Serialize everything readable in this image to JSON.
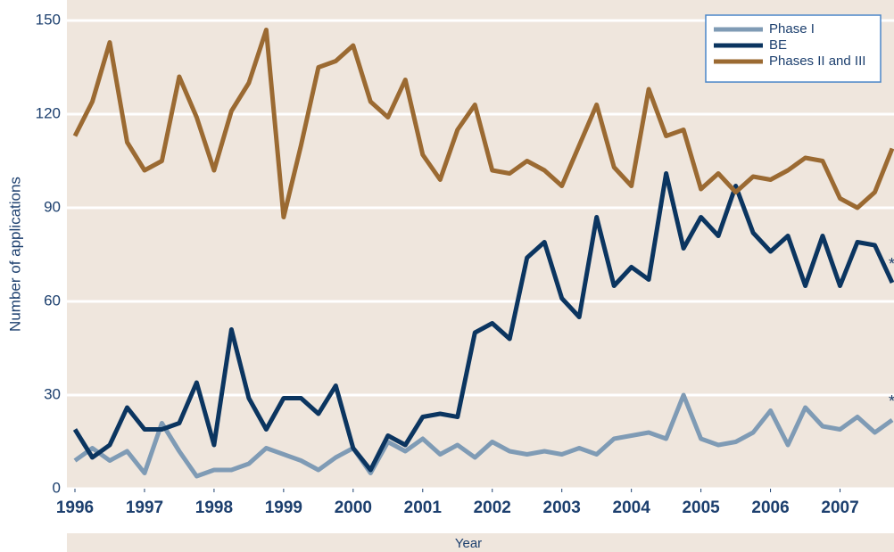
{
  "chart_data": {
    "type": "line",
    "xlabel": "Year",
    "ylabel": "Number of applications",
    "x": [
      1996,
      1996.25,
      1996.5,
      1996.75,
      1997,
      1997.25,
      1997.5,
      1997.75,
      1998,
      1998.25,
      1998.5,
      1998.75,
      1999,
      1999.25,
      1999.5,
      1999.75,
      2000,
      2000.25,
      2000.5,
      2000.75,
      2001,
      2001.25,
      2001.5,
      2001.75,
      2002,
      2002.25,
      2002.5,
      2002.75,
      2003,
      2003.25,
      2003.5,
      2003.75,
      2004,
      2004.25,
      2004.5,
      2004.75,
      2005,
      2005.25,
      2005.5,
      2005.75,
      2006,
      2006.25,
      2006.5,
      2006.75,
      2007,
      2007.25,
      2007.5,
      2007.75
    ],
    "xlim": [
      1996,
      2007.75
    ],
    "xticks": [
      1996,
      1997,
      1998,
      1999,
      2000,
      2001,
      2002,
      2003,
      2004,
      2005,
      2006,
      2007
    ],
    "ylim": [
      0,
      150
    ],
    "yticks": [
      0,
      30,
      60,
      90,
      120,
      150
    ],
    "grid": true,
    "legend": "top-right",
    "series": [
      {
        "name": "Phase I",
        "color": "#7f9bb5",
        "values": [
          9,
          13,
          9,
          12,
          5,
          21,
          12,
          4,
          6,
          6,
          8,
          13,
          11,
          9,
          6,
          10,
          13,
          5,
          15,
          12,
          16,
          11,
          14,
          10,
          15,
          12,
          11,
          12,
          11,
          13,
          11,
          16,
          17,
          18,
          16,
          30,
          16,
          14,
          15,
          18,
          25,
          14,
          26,
          20,
          19,
          23,
          18,
          22
        ]
      },
      {
        "name": "BE",
        "color": "#0b3560",
        "values": [
          19,
          10,
          14,
          26,
          19,
          19,
          21,
          34,
          14,
          51,
          29,
          19,
          29,
          29,
          24,
          33,
          13,
          6,
          17,
          14,
          23,
          24,
          23,
          50,
          53,
          48,
          74,
          79,
          61,
          55,
          87,
          65,
          71,
          67,
          101,
          77,
          87,
          81,
          97,
          82,
          76,
          81,
          65,
          81,
          65,
          79,
          78,
          66
        ]
      },
      {
        "name": "Phases II and III",
        "color": "#9b6a32",
        "values": [
          113,
          124,
          143,
          111,
          102,
          105,
          132,
          119,
          102,
          121,
          130,
          147,
          87,
          110,
          135,
          137,
          142,
          124,
          119,
          131,
          107,
          99,
          115,
          123,
          102,
          101,
          105,
          102,
          97,
          110,
          123,
          103,
          97,
          128,
          113,
          115,
          96,
          101,
          95,
          100,
          99,
          102,
          106,
          105,
          93,
          90,
          95,
          109
        ]
      }
    ],
    "annotations": [
      "*",
      "*"
    ]
  }
}
